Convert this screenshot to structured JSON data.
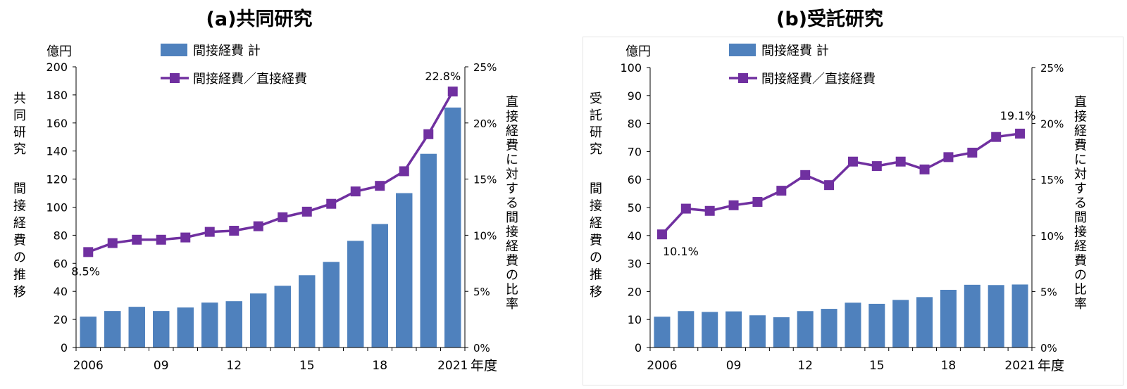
{
  "colors": {
    "bar": "#4f81bd",
    "line": "#7030a0",
    "axis": "#000000",
    "grid": "none"
  },
  "chart_data": [
    {
      "type": "bar+line",
      "title": "(a)共同研究",
      "left_axis_unit": "億円",
      "left_axis_label_lines": [
        "共同研究",
        "間接経費の推移"
      ],
      "right_axis_label": "直接経費に対する間接経費の比率",
      "x_axis_unit": "年度",
      "legend": [
        "間接経費 計",
        "間接経費／直接経費"
      ],
      "legend_position": "top-center",
      "x": [
        2006,
        2007,
        2008,
        2009,
        2010,
        2011,
        2012,
        2013,
        2014,
        2015,
        2016,
        2017,
        2018,
        2019,
        2020,
        2021
      ],
      "x_tick_labels": [
        "2006",
        "",
        "",
        "09",
        "",
        "",
        "12",
        "",
        "",
        "15",
        "",
        "",
        "18",
        "",
        "",
        "2021"
      ],
      "series": [
        {
          "name": "間接経費 計",
          "type": "bar",
          "axis": "left",
          "values": [
            22,
            26,
            29,
            26,
            28.5,
            32,
            33,
            38.5,
            44,
            51.5,
            61,
            76,
            88,
            110,
            138,
            171
          ]
        },
        {
          "name": "間接経費／直接経費",
          "type": "line",
          "axis": "right",
          "values": [
            8.5,
            9.3,
            9.6,
            9.6,
            9.8,
            10.3,
            10.4,
            10.8,
            11.6,
            12.1,
            12.8,
            13.9,
            14.4,
            15.7,
            19.0,
            22.8
          ]
        }
      ],
      "ylim_left": [
        0,
        200
      ],
      "y_ticks_left": [
        "0",
        "20",
        "40",
        "60",
        "80",
        "100",
        "120",
        "140",
        "160",
        "180",
        "200"
      ],
      "ylim_right": [
        0,
        25
      ],
      "y_ticks_right": [
        "0%",
        "5%",
        "10%",
        "15%",
        "20%",
        "25%"
      ],
      "annotations": [
        "8.5%",
        "22.8%"
      ]
    },
    {
      "type": "bar+line",
      "title": "(b)受託研究",
      "left_axis_unit": "億円",
      "left_axis_label_lines": [
        "受託研究",
        "間接経費の推移"
      ],
      "right_axis_label": "直接経費に対する間接経費の比率",
      "x_axis_unit": "年度",
      "legend": [
        "間接経費 計",
        "間接経費／直接経費"
      ],
      "legend_position": "top-center",
      "x": [
        2006,
        2007,
        2008,
        2009,
        2010,
        2011,
        2012,
        2013,
        2014,
        2015,
        2016,
        2017,
        2018,
        2019,
        2020,
        2021
      ],
      "x_tick_labels": [
        "2006",
        "",
        "",
        "09",
        "",
        "",
        "12",
        "",
        "",
        "15",
        "",
        "",
        "18",
        "",
        "",
        "2021"
      ],
      "series": [
        {
          "name": "間接経費 計",
          "type": "bar",
          "axis": "left",
          "values": [
            11,
            13,
            12.7,
            12.9,
            11.5,
            10.8,
            13,
            13.8,
            16,
            15.6,
            17,
            18,
            20.6,
            22.4,
            22.3,
            22.5
          ]
        },
        {
          "name": "間接経費／直接経費",
          "type": "line",
          "axis": "right",
          "values": [
            10.1,
            12.4,
            12.2,
            12.7,
            13.0,
            14.0,
            15.4,
            14.5,
            16.6,
            16.2,
            16.6,
            15.9,
            17.0,
            17.4,
            18.8,
            19.1
          ]
        }
      ],
      "ylim_left": [
        0,
        100
      ],
      "y_ticks_left": [
        "0",
        "10",
        "20",
        "30",
        "40",
        "50",
        "60",
        "70",
        "80",
        "90",
        "100"
      ],
      "ylim_right": [
        0,
        25
      ],
      "y_ticks_right": [
        "0%",
        "5%",
        "10%",
        "15%",
        "20%",
        "25%"
      ],
      "annotations": [
        "10.1%",
        "19.1%"
      ]
    }
  ]
}
